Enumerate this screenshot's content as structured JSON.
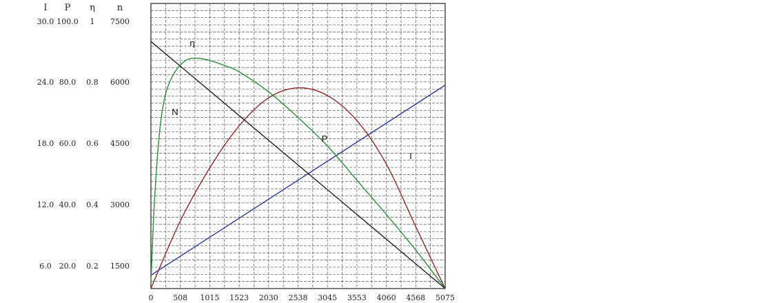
{
  "chart_data": {
    "type": "line",
    "title": "",
    "x_ticks": [
      "0",
      "508",
      "1015",
      "1523",
      "2030",
      "2538",
      "3045",
      "3553",
      "4060",
      "4568",
      "5075"
    ],
    "xlim": [
      0,
      5075
    ],
    "grid": true,
    "left_axes": {
      "headers": [
        "I",
        "P",
        "η",
        "n"
      ],
      "top_row": [
        "30.0",
        "100.0",
        "1",
        "7500"
      ],
      "rows": [
        [
          "24.0",
          "80.0",
          "0.8",
          "6000"
        ],
        [
          "18.0",
          "60.0",
          "0.6",
          "4500"
        ],
        [
          "12.0",
          "40.0",
          "0.4",
          "3000"
        ],
        [
          "6.0",
          "20.0",
          "0.2",
          "1500"
        ]
      ]
    },
    "series": [
      {
        "name": "I",
        "axis": "I",
        "color": "#2b3a94",
        "points": [
          [
            0,
            1.4
          ],
          [
            5075,
            21.4
          ]
        ]
      },
      {
        "name": "P",
        "axis": "P",
        "color": "#8b2a2a",
        "points": [
          [
            0,
            0
          ],
          [
            500,
            23.4
          ],
          [
            1015,
            42.3
          ],
          [
            1523,
            57.1
          ],
          [
            2030,
            66.9
          ],
          [
            2538,
            70.4
          ],
          [
            3045,
            67.7
          ],
          [
            3553,
            58.9
          ],
          [
            4060,
            43.7
          ],
          [
            4568,
            21.7
          ],
          [
            5075,
            0
          ]
        ]
      },
      {
        "name": "η",
        "axis": "eta",
        "color": "#2e8b3a",
        "points": [
          [
            0,
            0.02
          ],
          [
            60,
            0.3
          ],
          [
            150,
            0.55
          ],
          [
            250,
            0.68
          ],
          [
            400,
            0.755
          ],
          [
            600,
            0.8
          ],
          [
            800,
            0.808
          ],
          [
            1015,
            0.8
          ],
          [
            1300,
            0.78
          ],
          [
            1523,
            0.76
          ],
          [
            2030,
            0.69
          ],
          [
            2538,
            0.6
          ],
          [
            3045,
            0.5
          ],
          [
            3553,
            0.38
          ],
          [
            4060,
            0.26
          ],
          [
            4568,
            0.135
          ],
          [
            5075,
            0
          ]
        ]
      },
      {
        "name": "N",
        "axis": "n",
        "color": "#222222",
        "points": [
          [
            0,
            6500
          ],
          [
            5075,
            0
          ]
        ]
      }
    ]
  }
}
